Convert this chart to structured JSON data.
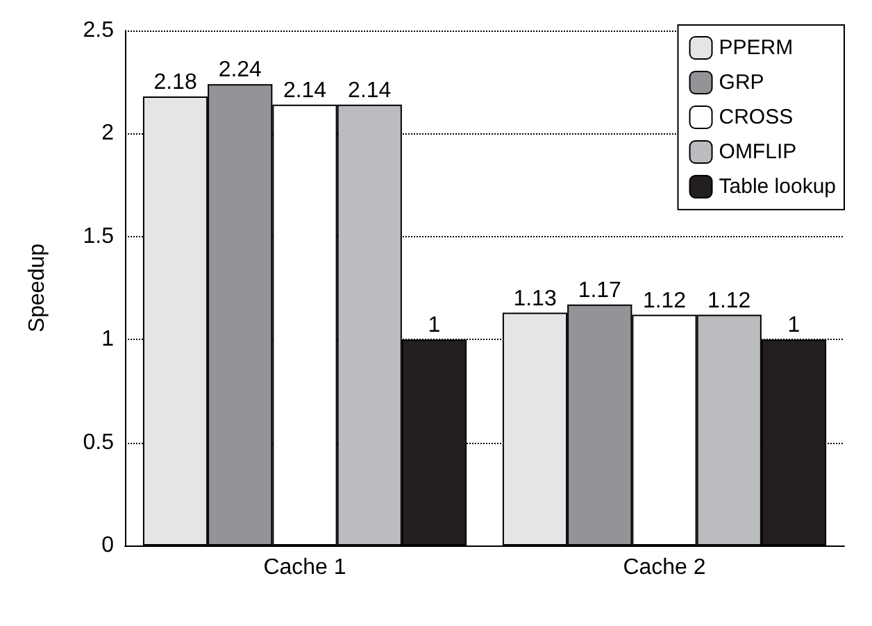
{
  "chart_data": {
    "type": "bar",
    "ylabel": "Speedup",
    "categories": [
      "Cache 1",
      "Cache 2"
    ],
    "series": [
      {
        "name": "PPERM",
        "color": "#e4e5e7",
        "values": [
          2.18,
          1.13
        ]
      },
      {
        "name": "GRP",
        "color": "#939497",
        "values": [
          2.24,
          1.17
        ]
      },
      {
        "name": "CROSS",
        "color": "#ffffff",
        "values": [
          2.14,
          1.12
        ]
      },
      {
        "name": "OMFLIP",
        "color": "#bbbcc0",
        "values": [
          2.14,
          1.12
        ]
      },
      {
        "name": "Table lookup",
        "color": "#231f20",
        "values": [
          1,
          1
        ]
      }
    ],
    "ylim": [
      0,
      2.5
    ],
    "yticks": [
      0,
      0.5,
      1,
      1.5,
      2,
      2.5
    ],
    "grid": "y",
    "legend": "top right",
    "data_labels": true
  }
}
